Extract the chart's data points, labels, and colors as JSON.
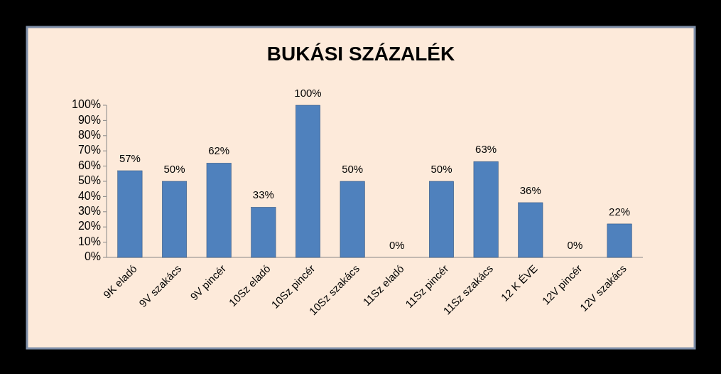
{
  "chart_data": {
    "type": "bar",
    "title": "BUKÁSI SZÁZALÉK",
    "categories": [
      "9K eladó",
      "9V szakács",
      "9V pincér",
      "10Sz eladó",
      "10Sz pincér",
      "10Sz szakács",
      "11Sz eladó",
      "11Sz pincér",
      "11Sz szakács",
      "12 K ÉVE",
      "12V pincér",
      "12V szakács"
    ],
    "values": [
      57,
      50,
      62,
      33,
      100,
      50,
      0,
      50,
      63,
      36,
      0,
      22
    ],
    "value_labels": [
      "57%",
      "50%",
      "62%",
      "33%",
      "100%",
      "50%",
      "0%",
      "50%",
      "63%",
      "36%",
      "0%",
      "22%"
    ],
    "color": "#4f81bd",
    "ylim": [
      0,
      100
    ],
    "yticks": [
      {
        "value": 0,
        "label": "0%"
      },
      {
        "value": 10,
        "label": "10%"
      },
      {
        "value": 20,
        "label": "20%"
      },
      {
        "value": 30,
        "label": "30%"
      },
      {
        "value": 40,
        "label": "40%"
      },
      {
        "value": 50,
        "label": "50%"
      },
      {
        "value": 60,
        "label": "60%"
      },
      {
        "value": 70,
        "label": "70%"
      },
      {
        "value": 80,
        "label": "80%"
      },
      {
        "value": 90,
        "label": "90%"
      },
      {
        "value": 100,
        "label": "100%"
      }
    ],
    "grid": false
  }
}
